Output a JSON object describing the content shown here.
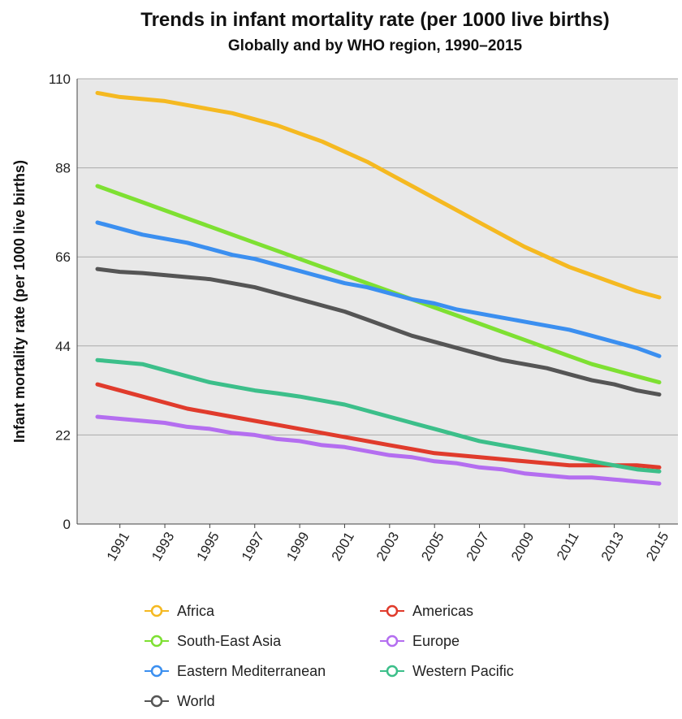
{
  "chart_data": {
    "type": "line",
    "title": "Trends in infant mortality rate (per 1000 live births)",
    "subtitle": "Globally and by WHO region, 1990–2015",
    "y_label": "Infant mortality rate (per 1000 live births)",
    "x": [
      1990,
      1991,
      1992,
      1993,
      1994,
      1995,
      1996,
      1997,
      1998,
      1999,
      2000,
      2001,
      2002,
      2003,
      2004,
      2005,
      2006,
      2007,
      2008,
      2009,
      2010,
      2011,
      2012,
      2013,
      2014,
      2015
    ],
    "xlim": [
      1990,
      2015
    ],
    "xticks": [
      1991,
      1993,
      1995,
      1997,
      1999,
      2001,
      2003,
      2005,
      2007,
      2009,
      2011,
      2013,
      2015
    ],
    "ylim": [
      0,
      110
    ],
    "yticks": [
      0,
      22,
      44,
      66,
      88,
      110
    ],
    "grid": true,
    "series": [
      {
        "name": "Africa",
        "color": "#f5b921",
        "values": [
          106.5,
          105.5,
          105,
          104.5,
          103.5,
          102.5,
          101.5,
          100,
          98.5,
          96.5,
          94.5,
          92,
          89.5,
          86.5,
          83.5,
          80.5,
          77.5,
          74.5,
          71.5,
          68.5,
          66,
          63.5,
          61.5,
          59.5,
          57.5,
          56
        ]
      },
      {
        "name": "South-East Asia",
        "color": "#7ee032",
        "values": [
          83.5,
          81.5,
          79.5,
          77.5,
          75.5,
          73.5,
          71.5,
          69.5,
          67.5,
          65.5,
          63.5,
          61.5,
          59.5,
          57.5,
          55.5,
          53.5,
          51.5,
          49.5,
          47.5,
          45.5,
          43.5,
          41.5,
          39.5,
          38,
          36.5,
          35
        ]
      },
      {
        "name": "Eastern Mediterranean",
        "color": "#3b8ff0",
        "values": [
          74.5,
          73,
          71.5,
          70.5,
          69.5,
          68,
          66.5,
          65.5,
          64,
          62.5,
          61,
          59.5,
          58.5,
          57,
          55.5,
          54.5,
          53,
          52,
          51,
          50,
          49,
          48,
          46.5,
          45,
          43.5,
          41.5
        ]
      },
      {
        "name": "World",
        "color": "#555555",
        "values": [
          63,
          62.3,
          62,
          61.5,
          61,
          60.5,
          59.5,
          58.5,
          57,
          55.5,
          54,
          52.5,
          50.5,
          48.5,
          46.5,
          45,
          43.5,
          42,
          40.5,
          39.5,
          38.5,
          37,
          35.5,
          34.5,
          33,
          32
        ]
      },
      {
        "name": "Americas",
        "color": "#e03b2c",
        "values": [
          34.5,
          33,
          31.5,
          30,
          28.5,
          27.5,
          26.5,
          25.5,
          24.5,
          23.5,
          22.5,
          21.5,
          20.5,
          19.5,
          18.5,
          17.5,
          17,
          16.5,
          16,
          15.5,
          15,
          14.5,
          14.5,
          14.5,
          14.5,
          14
        ]
      },
      {
        "name": "Europe",
        "color": "#b46ef0",
        "values": [
          26.5,
          26,
          25.5,
          25,
          24,
          23.5,
          22.5,
          22,
          21,
          20.5,
          19.5,
          19,
          18,
          17,
          16.5,
          15.5,
          15,
          14,
          13.5,
          12.5,
          12,
          11.5,
          11.5,
          11,
          10.5,
          10
        ]
      },
      {
        "name": "Western Pacific",
        "color": "#3cbf8a",
        "values": [
          40.5,
          40,
          39.5,
          38,
          36.5,
          35,
          34,
          33,
          32.3,
          31.5,
          30.5,
          29.5,
          28,
          26.5,
          25,
          23.5,
          22,
          20.5,
          19.5,
          18.5,
          17.5,
          16.5,
          15.5,
          14.5,
          13.5,
          13
        ]
      }
    ]
  }
}
